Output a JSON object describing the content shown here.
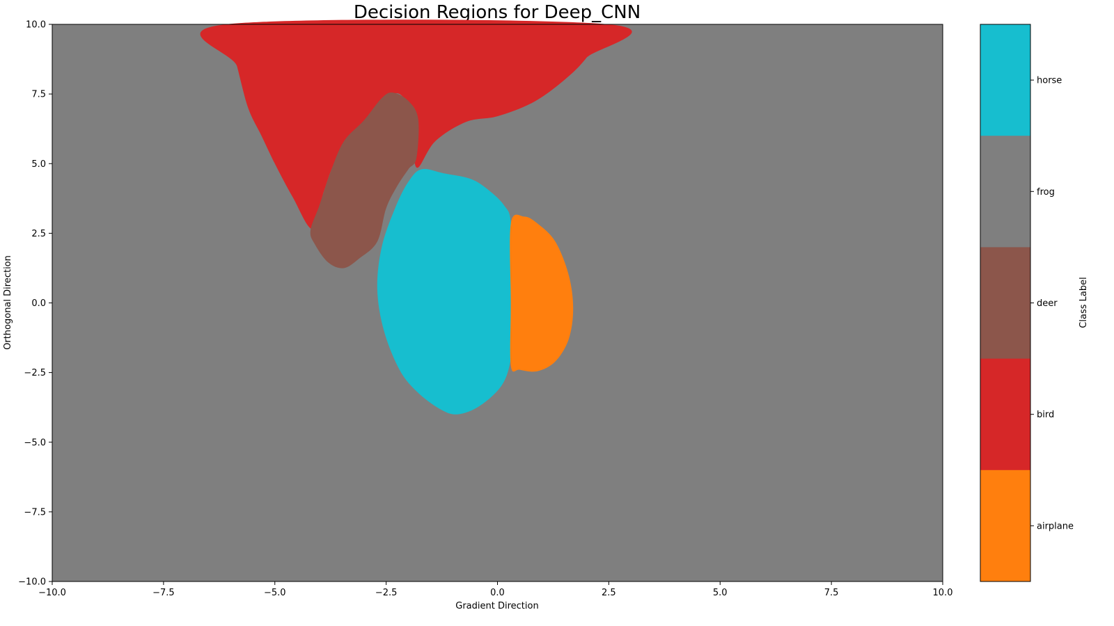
{
  "chart_data": {
    "type": "heatmap",
    "title": "Decision Regions for Deep_CNN",
    "xlabel": "Gradient Direction",
    "ylabel": "Orthogonal Direction",
    "xlim": [
      -10,
      10
    ],
    "ylim": [
      -10,
      10
    ],
    "x_ticks": [
      -10.0,
      -7.5,
      -5.0,
      -2.5,
      0.0,
      2.5,
      5.0,
      7.5,
      10.0
    ],
    "y_ticks": [
      -10.0,
      -7.5,
      -5.0,
      -2.5,
      0.0,
      2.5,
      5.0,
      7.5,
      10.0
    ],
    "x_tick_labels": [
      "−10.0",
      "−7.5",
      "−5.0",
      "−2.5",
      "0.0",
      "2.5",
      "5.0",
      "7.5",
      "10.0"
    ],
    "y_tick_labels": [
      "−10.0",
      "−7.5",
      "−5.0",
      "−2.5",
      "0.0",
      "2.5",
      "5.0",
      "7.5",
      "10.0"
    ],
    "grid": false,
    "background_class": "frog",
    "classes": [
      {
        "name": "airplane",
        "color": "#ff7f0e"
      },
      {
        "name": "bird",
        "color": "#d62728"
      },
      {
        "name": "deer",
        "color": "#8c564b"
      },
      {
        "name": "frog",
        "color": "#7f7f7f"
      },
      {
        "name": "horse",
        "color": "#17becf"
      }
    ],
    "regions": [
      {
        "class": "bird",
        "boundary": [
          [
            -6.1,
            10
          ],
          [
            -5.85,
            8.5
          ],
          [
            -5.6,
            7.0
          ],
          [
            -5.3,
            6.0
          ],
          [
            -5.0,
            5.0
          ],
          [
            -4.6,
            3.8
          ],
          [
            -4.15,
            2.65
          ],
          [
            -3.9,
            4.0
          ],
          [
            -3.6,
            5.2
          ],
          [
            -3.0,
            6.4
          ],
          [
            -2.5,
            7.3
          ],
          [
            -2.2,
            7.5
          ],
          [
            -1.9,
            6.8
          ],
          [
            -1.9,
            5.8
          ],
          [
            -1.8,
            4.85
          ],
          [
            -1.4,
            5.8
          ],
          [
            -0.7,
            6.5
          ],
          [
            0,
            6.7
          ],
          [
            0.8,
            7.2
          ],
          [
            1.5,
            8.0
          ],
          [
            2.0,
            8.8
          ],
          [
            2.5,
            10
          ]
        ]
      },
      {
        "class": "deer",
        "boundary": [
          [
            -2.35,
            7.55
          ],
          [
            -2.0,
            7.25
          ],
          [
            -1.78,
            6.6
          ],
          [
            -1.82,
            5.2
          ],
          [
            -2.0,
            4.8
          ],
          [
            -2.25,
            4.2
          ],
          [
            -2.5,
            3.4
          ],
          [
            -2.7,
            2.2
          ],
          [
            -3.1,
            1.6
          ],
          [
            -3.45,
            1.25
          ],
          [
            -3.8,
            1.45
          ],
          [
            -4.1,
            2.1
          ],
          [
            -4.2,
            2.6
          ],
          [
            -4.0,
            3.5
          ],
          [
            -3.75,
            4.7
          ],
          [
            -3.45,
            5.8
          ],
          [
            -3.0,
            6.55
          ],
          [
            -2.6,
            7.35
          ]
        ]
      },
      {
        "class": "horse",
        "boundary": [
          [
            -1.7,
            4.8
          ],
          [
            -1.2,
            4.65
          ],
          [
            -0.6,
            4.45
          ],
          [
            -0.2,
            4.05
          ],
          [
            0.15,
            3.5
          ],
          [
            0.3,
            2.9
          ],
          [
            0.3,
            1.0
          ],
          [
            0.3,
            -1.0
          ],
          [
            0.3,
            -2.0
          ],
          [
            0.1,
            -2.95
          ],
          [
            -0.4,
            -3.7
          ],
          [
            -0.9,
            -4.0
          ],
          [
            -1.3,
            -3.8
          ],
          [
            -1.8,
            -3.2
          ],
          [
            -2.2,
            -2.4
          ],
          [
            -2.55,
            -1.0
          ],
          [
            -2.7,
            0.5
          ],
          [
            -2.6,
            2.0
          ],
          [
            -2.3,
            3.4
          ],
          [
            -2.0,
            4.35
          ]
        ]
      },
      {
        "class": "airplane",
        "boundary": [
          [
            0.3,
            2.85
          ],
          [
            0.6,
            3.1
          ],
          [
            0.9,
            2.85
          ],
          [
            1.3,
            2.2
          ],
          [
            1.6,
            1.0
          ],
          [
            1.7,
            -0.2
          ],
          [
            1.6,
            -1.3
          ],
          [
            1.3,
            -2.1
          ],
          [
            0.9,
            -2.45
          ],
          [
            0.5,
            -2.4
          ],
          [
            0.3,
            -2.25
          ],
          [
            0.3,
            0.0
          ]
        ]
      }
    ],
    "colorbar": {
      "label": "Class Label",
      "entries": [
        "horse",
        "frog",
        "deer",
        "bird",
        "airplane"
      ]
    }
  }
}
